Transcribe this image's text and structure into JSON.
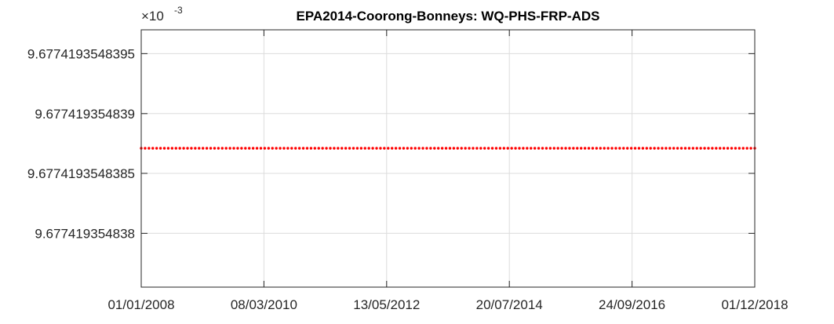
{
  "chart_data": {
    "type": "scatter",
    "title": "EPA2014-Coorong-Bonneys: WQ-PHS-FRP-ADS",
    "xlabel": "",
    "ylabel": "",
    "y_exponent": {
      "base": "×10",
      "power": "-3"
    },
    "x_axis": {
      "type": "date",
      "range": [
        "2008-01-01",
        "2018-12-01"
      ],
      "tick_labels": [
        "01/01/2008",
        "08/03/2010",
        "13/05/2012",
        "20/07/2014",
        "24/09/2016",
        "01/12/2018"
      ]
    },
    "y_axis": {
      "range": [
        9.67741935483755,
        9.6774193548397
      ],
      "ticks": [
        9.677419354838,
        9.6774193548385,
        9.677419354839,
        9.6774193548395
      ],
      "tick_labels": [
        "9.677419354838",
        "9.6774193548385",
        "9.677419354839",
        "9.6774193548395"
      ]
    },
    "grid": true,
    "series": [
      {
        "marker": "dot",
        "color": "#ff0000",
        "x_start": "2008-01-01",
        "x_end": "2018-12-01",
        "y": 9.67741935483871,
        "point_count": 160
      }
    ]
  }
}
